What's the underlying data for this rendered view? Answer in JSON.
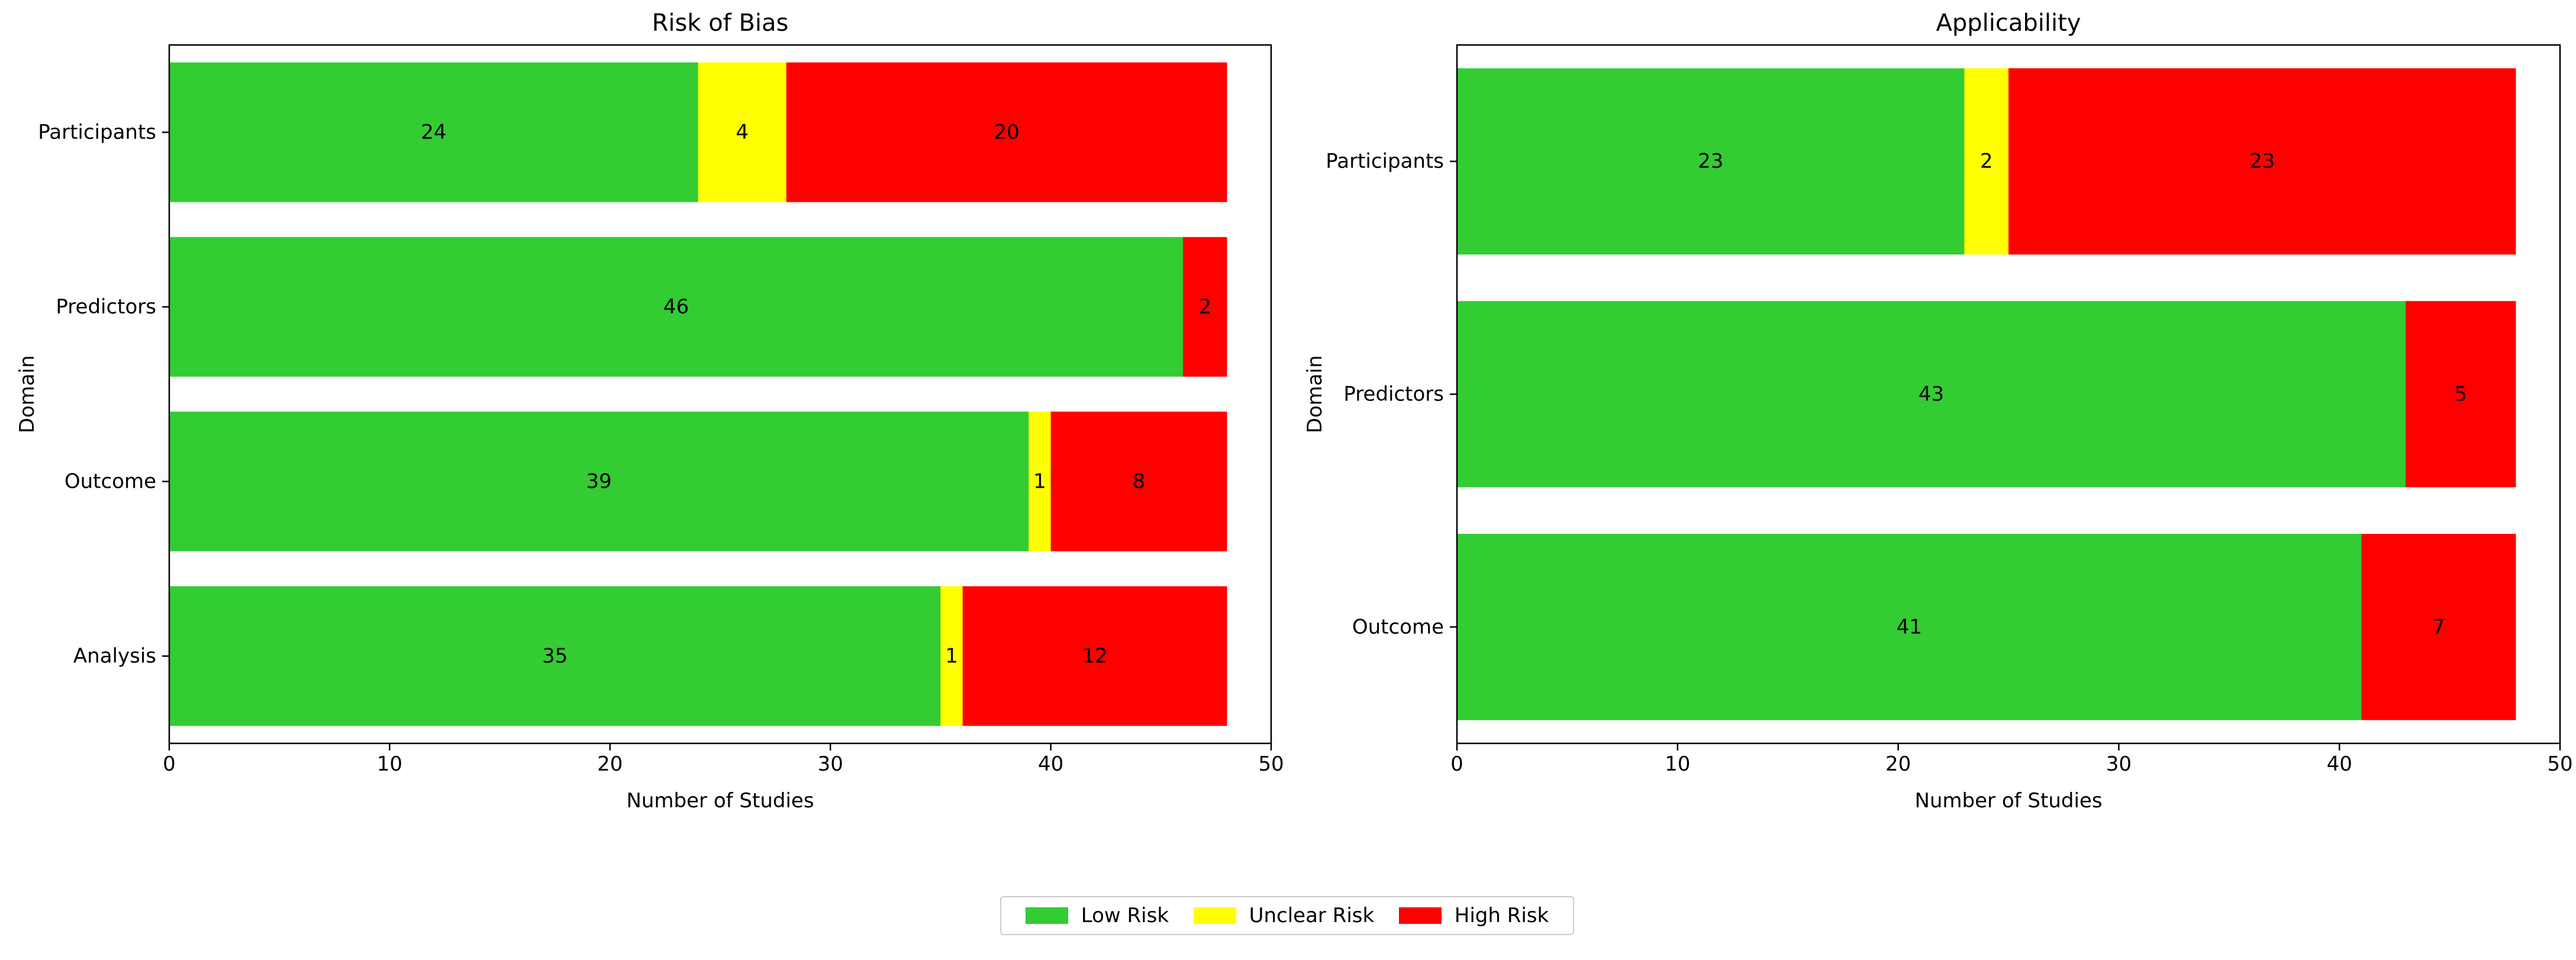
{
  "colors": {
    "low": "#33cc33",
    "unclear": "#ffff00",
    "high": "#ff0000"
  },
  "legend": {
    "items": [
      {
        "key": "low",
        "label": "Low Risk"
      },
      {
        "key": "unclear",
        "label": "Unclear Risk"
      },
      {
        "key": "high",
        "label": "High Risk"
      }
    ]
  },
  "chart_data": [
    {
      "type": "bar",
      "orientation": "horizontal",
      "stacked": true,
      "title": "Risk of Bias",
      "xlabel": "Number of Studies",
      "ylabel": "Domain",
      "xlim": [
        0,
        50
      ],
      "xticks": [
        0,
        10,
        20,
        30,
        40,
        50
      ],
      "categories": [
        "Participants",
        "Predictors",
        "Outcome",
        "Analysis"
      ],
      "series": [
        {
          "name": "Low Risk",
          "key": "low",
          "values": [
            24,
            46,
            39,
            35
          ]
        },
        {
          "name": "Unclear Risk",
          "key": "unclear",
          "values": [
            4,
            0,
            1,
            1
          ]
        },
        {
          "name": "High Risk",
          "key": "high",
          "values": [
            20,
            2,
            8,
            12
          ]
        }
      ]
    },
    {
      "type": "bar",
      "orientation": "horizontal",
      "stacked": true,
      "title": "Applicability",
      "xlabel": "Number of Studies",
      "ylabel": "Domain",
      "xlim": [
        0,
        50
      ],
      "xticks": [
        0,
        10,
        20,
        30,
        40,
        50
      ],
      "categories": [
        "Participants",
        "Predictors",
        "Outcome"
      ],
      "series": [
        {
          "name": "Low Risk",
          "key": "low",
          "values": [
            23,
            43,
            41
          ]
        },
        {
          "name": "Unclear Risk",
          "key": "unclear",
          "values": [
            2,
            0,
            0
          ]
        },
        {
          "name": "High Risk",
          "key": "high",
          "values": [
            23,
            5,
            7
          ]
        }
      ]
    }
  ]
}
